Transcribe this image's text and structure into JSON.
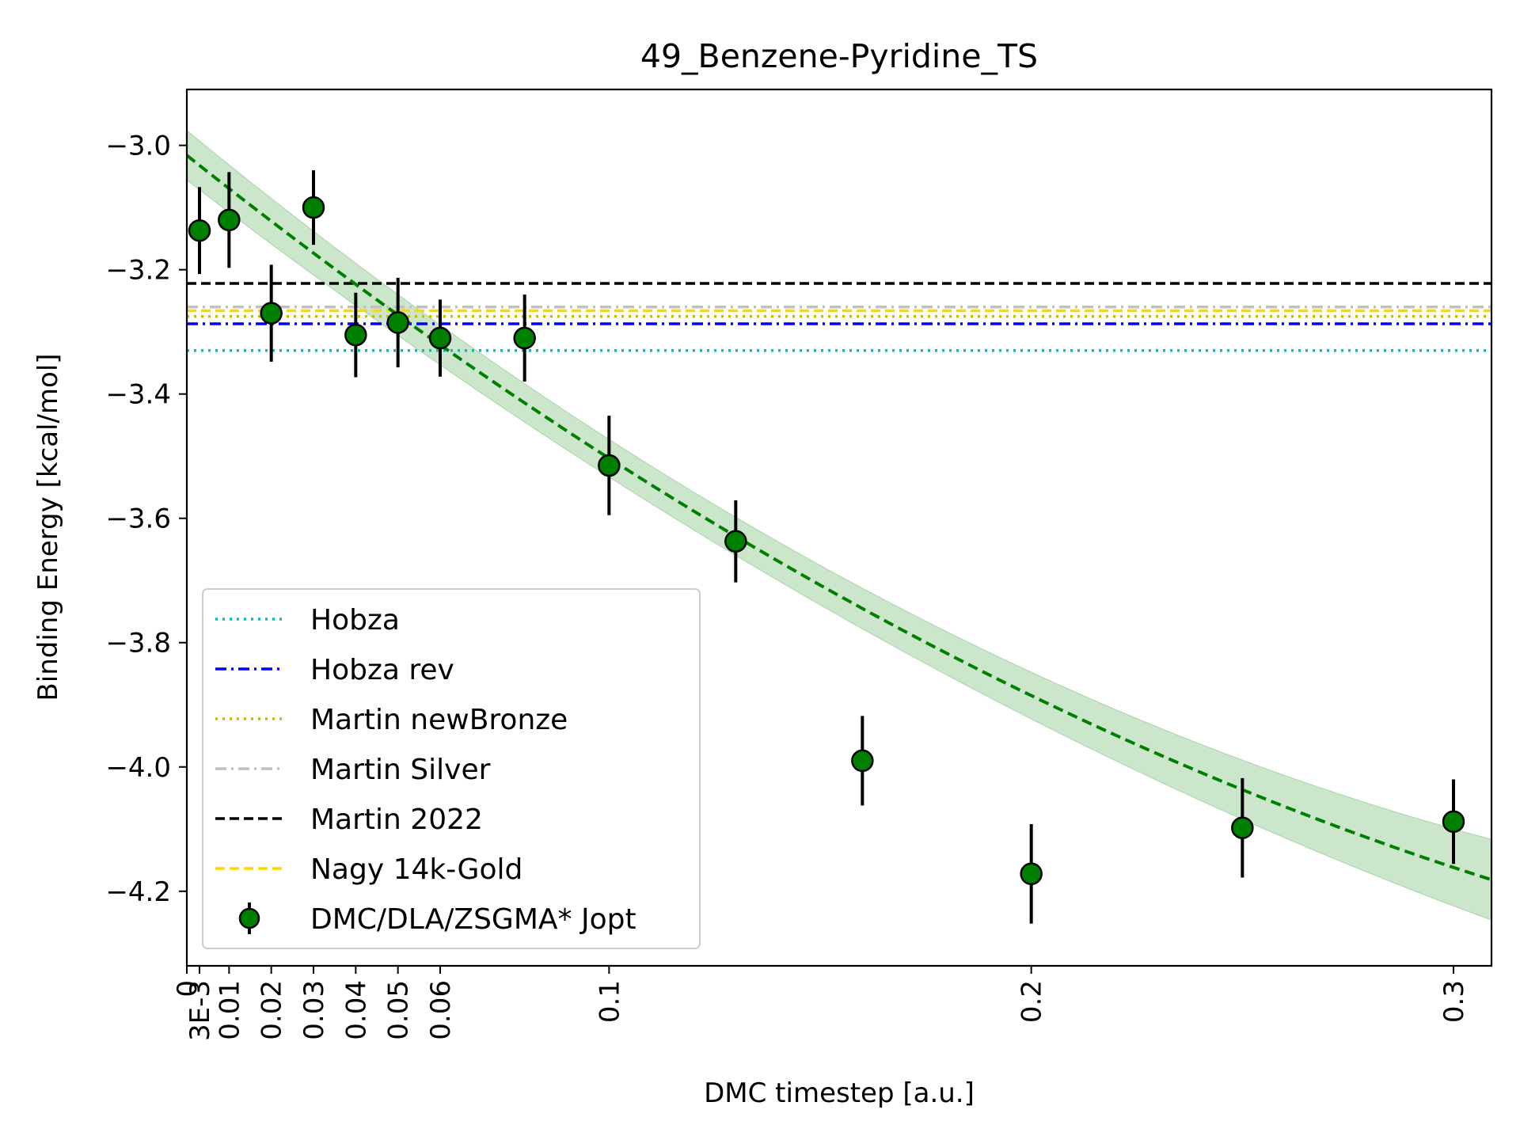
{
  "chart_data": {
    "type": "scatter",
    "title": "49_Benzene-Pyridine_TS",
    "xlabel": "DMC timestep [a.u.]",
    "ylabel": "Binding Energy [kcal/mol]",
    "xlim": [
      0,
      0.309
    ],
    "ylim": [
      -4.32,
      -2.91
    ],
    "grid": false,
    "legend_position": "lower-left",
    "xticks": [
      {
        "value": 0,
        "label": "0"
      },
      {
        "value": 0.003,
        "label": "3E-3"
      },
      {
        "value": 0.01,
        "label": "0.01"
      },
      {
        "value": 0.02,
        "label": "0.02"
      },
      {
        "value": 0.03,
        "label": "0.03"
      },
      {
        "value": 0.04,
        "label": "0.04"
      },
      {
        "value": 0.05,
        "label": "0.05"
      },
      {
        "value": 0.06,
        "label": "0.06"
      },
      {
        "value": 0.1,
        "label": "0.1"
      },
      {
        "value": 0.2,
        "label": "0.2"
      },
      {
        "value": 0.3,
        "label": "0.3"
      }
    ],
    "yticks": [
      {
        "value": -3.0,
        "label": "−3.0"
      },
      {
        "value": -3.2,
        "label": "−3.2"
      },
      {
        "value": -3.4,
        "label": "−3.4"
      },
      {
        "value": -3.6,
        "label": "−3.6"
      },
      {
        "value": -3.8,
        "label": "−3.8"
      },
      {
        "value": -4.0,
        "label": "−4.0"
      },
      {
        "value": -4.2,
        "label": "−4.2"
      }
    ],
    "reference_lines": [
      {
        "name": "Hobza",
        "y": -3.33,
        "color": "#00bfbf",
        "style": "dotted"
      },
      {
        "name": "Hobza rev",
        "y": -3.287,
        "color": "#0000ff",
        "style": "dashdot"
      },
      {
        "name": "Martin newBronze",
        "y": -3.275,
        "color": "#bfbf00",
        "style": "dotted"
      },
      {
        "name": "Martin Silver",
        "y": -3.26,
        "color": "#c0c0c0",
        "style": "dashdot"
      },
      {
        "name": "Martin 2022",
        "y": -3.222,
        "color": "#000000",
        "style": "dashed"
      },
      {
        "name": "Nagy 14k-Gold",
        "y": -3.266,
        "color": "#ffd700",
        "style": "dashed"
      }
    ],
    "series": [
      {
        "name": "DMC/DLA/ZSGMA* Jopt",
        "color": "#008000",
        "points": [
          {
            "x": 0.003,
            "y": -3.137,
            "err": 0.07
          },
          {
            "x": 0.01,
            "y": -3.12,
            "err": 0.077
          },
          {
            "x": 0.02,
            "y": -3.27,
            "err": 0.078
          },
          {
            "x": 0.03,
            "y": -3.1,
            "err": 0.06
          },
          {
            "x": 0.04,
            "y": -3.305,
            "err": 0.068
          },
          {
            "x": 0.05,
            "y": -3.285,
            "err": 0.072
          },
          {
            "x": 0.06,
            "y": -3.31,
            "err": 0.062
          },
          {
            "x": 0.08,
            "y": -3.31,
            "err": 0.07
          },
          {
            "x": 0.1,
            "y": -3.515,
            "err": 0.08
          },
          {
            "x": 0.13,
            "y": -3.637,
            "err": 0.066
          },
          {
            "x": 0.16,
            "y": -3.99,
            "err": 0.072
          },
          {
            "x": 0.2,
            "y": -4.172,
            "err": 0.08
          },
          {
            "x": 0.25,
            "y": -4.098,
            "err": 0.08
          },
          {
            "x": 0.3,
            "y": -4.088,
            "err": 0.068
          }
        ]
      }
    ],
    "fit": {
      "type": "quadratic",
      "color": "#008000",
      "band_color": "#008000",
      "coefficients": {
        "a": -3.016,
        "b": -5.4,
        "c": 5.27
      },
      "band_half_width": {
        "at_start": 0.04,
        "at_mid": 0.012,
        "at_end": 0.065
      }
    }
  }
}
